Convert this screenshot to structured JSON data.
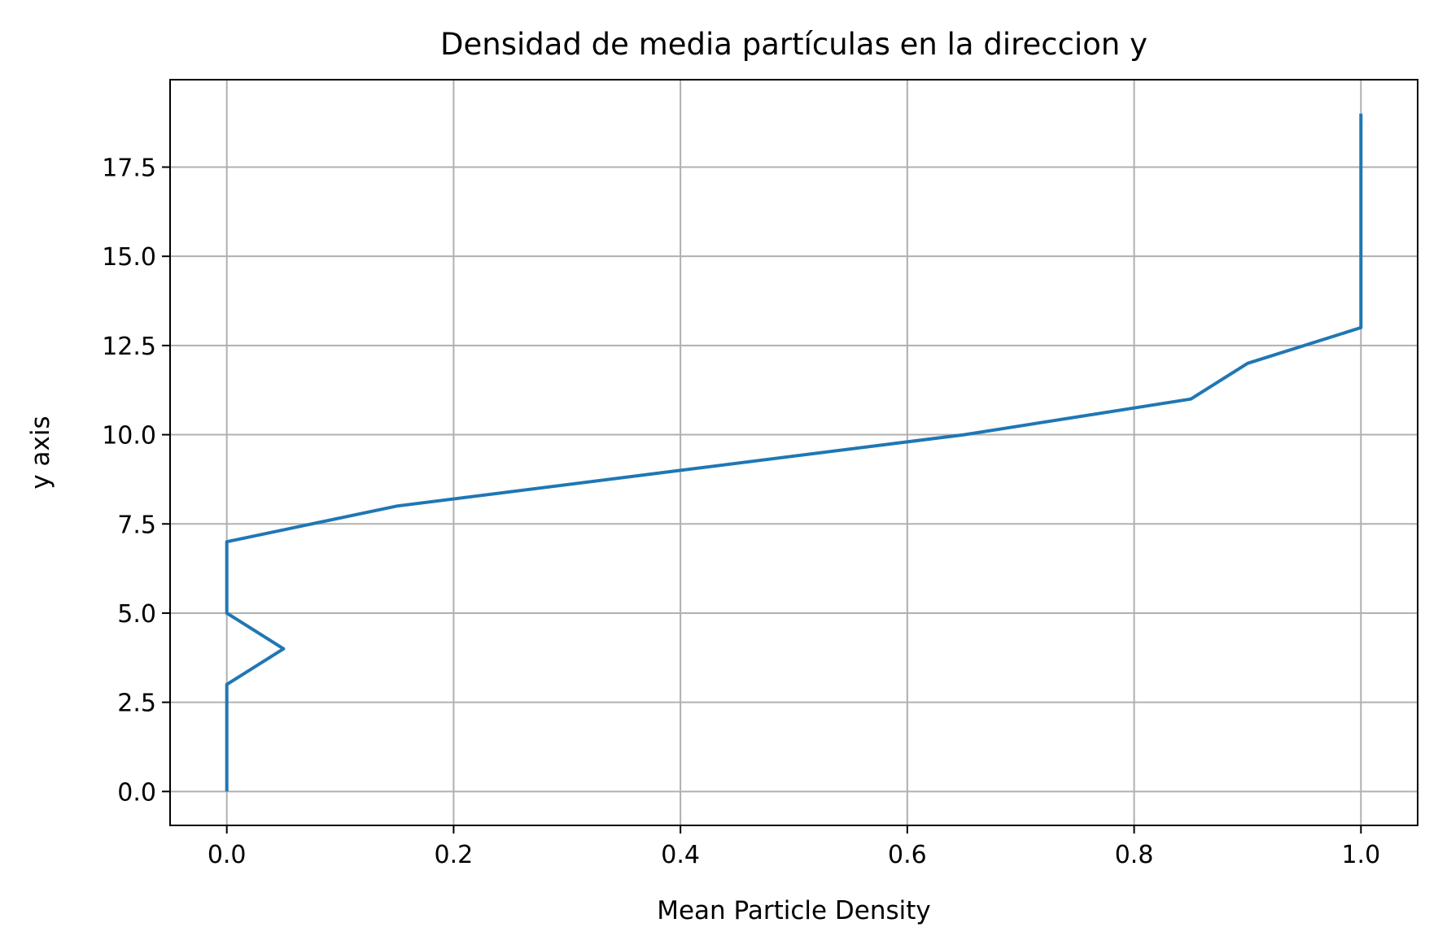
{
  "chart_data": {
    "type": "line",
    "title": "Densidad de media partículas en la direccion y",
    "xlabel": "Mean Particle Density",
    "ylabel": "y axis",
    "xlim": [
      -0.05,
      1.05
    ],
    "ylim": [
      -0.95,
      19.95
    ],
    "xticks": [
      0.0,
      0.2,
      0.4,
      0.6,
      0.8,
      1.0
    ],
    "xtick_labels": [
      "0.0",
      "0.2",
      "0.4",
      "0.6",
      "0.8",
      "1.0"
    ],
    "yticks": [
      0.0,
      2.5,
      5.0,
      7.5,
      10.0,
      12.5,
      15.0,
      17.5
    ],
    "ytick_labels": [
      "0.0",
      "2.5",
      "5.0",
      "7.5",
      "10.0",
      "12.5",
      "15.0",
      "17.5"
    ],
    "grid": true,
    "series": [
      {
        "color": "#1f77b4",
        "x": [
          0,
          0,
          0,
          0,
          0.05,
          0,
          0,
          0,
          0.15,
          0.4,
          0.65,
          0.85,
          0.9,
          1.0,
          1.0,
          1.0,
          1.0,
          1.0,
          1.0,
          1.0
        ],
        "y": [
          0,
          1,
          2,
          3,
          4,
          5,
          6,
          7,
          8,
          9,
          10,
          11,
          12,
          13,
          14,
          15,
          16,
          17,
          18,
          19
        ]
      }
    ]
  }
}
